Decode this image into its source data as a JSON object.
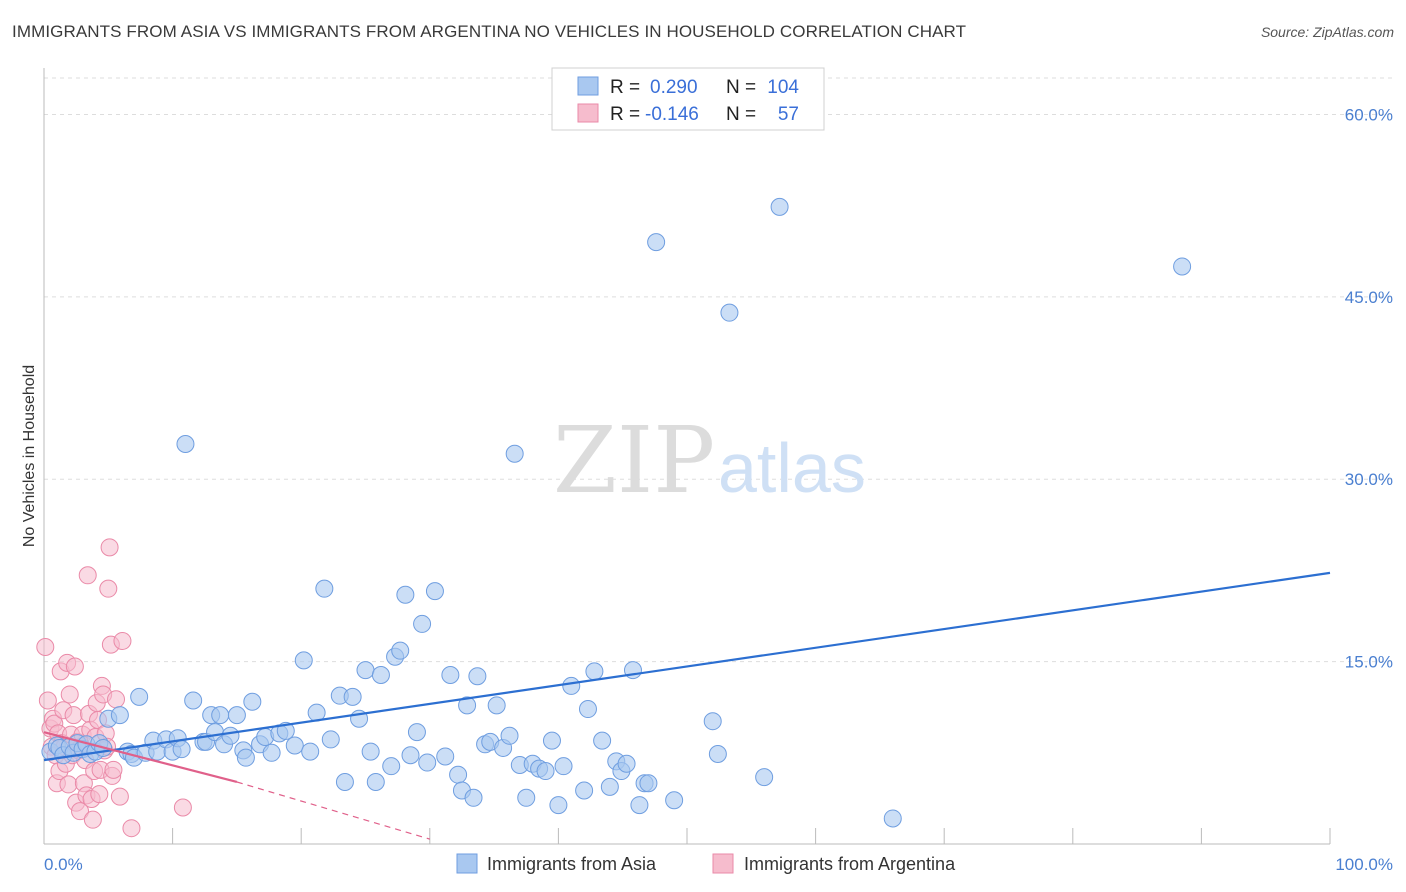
{
  "title": "IMMIGRANTS FROM ASIA VS IMMIGRANTS FROM ARGENTINA NO VEHICLES IN HOUSEHOLD CORRELATION CHART",
  "source": "Source: ZipAtlas.com",
  "watermark": {
    "zip": "ZIP",
    "atlas": "atlas"
  },
  "colors": {
    "asia_fill": "#a9c8f0",
    "asia_stroke": "#6f9ee0",
    "asia_line": "#2c6fd1",
    "arg_fill": "#f6bccd",
    "arg_stroke": "#ea8aa8",
    "arg_line": "#e0608a",
    "grid": "#dddddd",
    "tick_text": "#4a7fd0"
  },
  "legend": {
    "rows": [
      {
        "r_label": "R =",
        "r_value": "0.290",
        "n_label": "N =",
        "n_value": "104"
      },
      {
        "r_label": "R =",
        "r_value": "-0.146",
        "n_label": "N =",
        "n_value": "57"
      }
    ]
  },
  "chart_data": {
    "type": "scatter",
    "title": "IMMIGRANTS FROM ASIA VS IMMIGRANTS FROM ARGENTINA NO VEHICLES IN HOUSEHOLD CORRELATION CHART",
    "xlabel": "",
    "ylabel": "No Vehicles in Household",
    "xlim": [
      0,
      100
    ],
    "ylim": [
      0,
      63
    ],
    "x_tick_labels": [
      "0.0%",
      "100.0%"
    ],
    "y_ticks": [
      15,
      30,
      45,
      60
    ],
    "y_tick_labels": [
      "15.0%",
      "30.0%",
      "45.0%",
      "60.0%"
    ],
    "grid": true,
    "legend_position": "top-center",
    "series": [
      {
        "name": "Immigrants from Asia",
        "r": 0.29,
        "n": 104,
        "trend": {
          "x": [
            0,
            100
          ],
          "y": [
            6.9,
            22.3
          ],
          "style": "solid"
        },
        "points": [
          [
            0.5,
            7.6
          ],
          [
            1.0,
            8.1
          ],
          [
            1.2,
            7.9
          ],
          [
            1.5,
            7.3
          ],
          [
            2.0,
            8.0
          ],
          [
            2.3,
            7.5
          ],
          [
            2.6,
            8.3
          ],
          [
            3.0,
            7.8
          ],
          [
            3.3,
            8.2
          ],
          [
            3.6,
            7.4
          ],
          [
            4.0,
            7.6
          ],
          [
            4.3,
            8.3
          ],
          [
            4.6,
            7.9
          ],
          [
            5.0,
            10.3
          ],
          [
            5.9,
            10.6
          ],
          [
            6.5,
            7.6
          ],
          [
            6.8,
            7.4
          ],
          [
            7.0,
            7.1
          ],
          [
            7.4,
            12.1
          ],
          [
            7.9,
            7.5
          ],
          [
            8.5,
            8.5
          ],
          [
            8.8,
            7.6
          ],
          [
            9.5,
            8.6
          ],
          [
            10.0,
            7.6
          ],
          [
            10.4,
            8.7
          ],
          [
            10.7,
            7.8
          ],
          [
            11.0,
            32.9
          ],
          [
            11.6,
            11.8
          ],
          [
            12.4,
            8.4
          ],
          [
            12.6,
            8.4
          ],
          [
            13.0,
            10.6
          ],
          [
            13.3,
            9.2
          ],
          [
            13.7,
            10.6
          ],
          [
            14.0,
            8.2
          ],
          [
            14.5,
            8.9
          ],
          [
            15.0,
            10.6
          ],
          [
            15.5,
            7.7
          ],
          [
            15.7,
            7.1
          ],
          [
            16.2,
            11.7
          ],
          [
            16.8,
            8.2
          ],
          [
            17.2,
            8.8
          ],
          [
            17.7,
            7.5
          ],
          [
            18.3,
            9.1
          ],
          [
            18.8,
            9.3
          ],
          [
            19.5,
            8.1
          ],
          [
            20.2,
            15.1
          ],
          [
            20.7,
            7.6
          ],
          [
            21.2,
            10.8
          ],
          [
            21.8,
            21.0
          ],
          [
            22.3,
            8.6
          ],
          [
            23.0,
            12.2
          ],
          [
            23.4,
            5.1
          ],
          [
            24.0,
            12.1
          ],
          [
            24.5,
            10.3
          ],
          [
            25.0,
            14.3
          ],
          [
            25.4,
            7.6
          ],
          [
            25.8,
            5.1
          ],
          [
            26.2,
            13.9
          ],
          [
            27.0,
            6.4
          ],
          [
            27.3,
            15.4
          ],
          [
            27.7,
            15.9
          ],
          [
            28.1,
            20.5
          ],
          [
            28.5,
            7.3
          ],
          [
            29.0,
            9.2
          ],
          [
            29.4,
            18.1
          ],
          [
            29.8,
            6.7
          ],
          [
            30.4,
            20.8
          ],
          [
            31.2,
            7.2
          ],
          [
            31.6,
            13.9
          ],
          [
            32.2,
            5.7
          ],
          [
            32.5,
            4.4
          ],
          [
            32.9,
            11.4
          ],
          [
            33.4,
            3.8
          ],
          [
            33.7,
            13.8
          ],
          [
            34.3,
            8.2
          ],
          [
            34.7,
            8.4
          ],
          [
            35.2,
            11.4
          ],
          [
            35.7,
            7.9
          ],
          [
            36.2,
            8.9
          ],
          [
            36.6,
            32.1
          ],
          [
            37.0,
            6.5
          ],
          [
            37.5,
            3.8
          ],
          [
            38.0,
            6.6
          ],
          [
            38.5,
            6.2
          ],
          [
            39.0,
            6.0
          ],
          [
            39.5,
            8.5
          ],
          [
            40.0,
            3.2
          ],
          [
            40.4,
            6.4
          ],
          [
            41.0,
            13.0
          ],
          [
            42.0,
            4.4
          ],
          [
            42.3,
            11.1
          ],
          [
            42.8,
            14.2
          ],
          [
            43.4,
            8.5
          ],
          [
            44.0,
            4.7
          ],
          [
            44.5,
            6.8
          ],
          [
            44.9,
            6.0
          ],
          [
            45.3,
            6.6
          ],
          [
            45.8,
            14.3
          ],
          [
            46.3,
            3.2
          ],
          [
            46.7,
            5.0
          ],
          [
            47.0,
            5.0
          ],
          [
            47.6,
            49.5
          ],
          [
            49.0,
            3.6
          ],
          [
            52.0,
            10.1
          ],
          [
            52.4,
            7.4
          ],
          [
            53.3,
            43.7
          ],
          [
            56.0,
            5.5
          ],
          [
            57.2,
            52.4
          ],
          [
            66.0,
            2.1
          ],
          [
            88.5,
            47.5
          ]
        ]
      },
      {
        "name": "Immigrants from Argentina",
        "r": -0.146,
        "n": 57,
        "trend": {
          "x": [
            0,
            15
          ],
          "y": [
            9.2,
            5.1
          ],
          "style": "solid",
          "extended_dashed_to": [
            30,
            0.4
          ]
        },
        "points": [
          [
            0.1,
            16.2
          ],
          [
            0.3,
            11.8
          ],
          [
            0.5,
            9.5
          ],
          [
            0.6,
            8.0
          ],
          [
            0.7,
            10.3
          ],
          [
            0.8,
            9.9
          ],
          [
            0.9,
            7.3
          ],
          [
            1.0,
            5.0
          ],
          [
            1.1,
            9.1
          ],
          [
            1.2,
            6.0
          ],
          [
            1.3,
            14.2
          ],
          [
            1.4,
            8.3
          ],
          [
            1.5,
            11.0
          ],
          [
            1.6,
            8.0
          ],
          [
            1.7,
            6.6
          ],
          [
            1.8,
            14.9
          ],
          [
            1.9,
            4.9
          ],
          [
            2.0,
            12.3
          ],
          [
            2.1,
            9.0
          ],
          [
            2.2,
            7.3
          ],
          [
            2.3,
            10.6
          ],
          [
            2.4,
            14.6
          ],
          [
            2.5,
            3.4
          ],
          [
            2.6,
            8.4
          ],
          [
            2.7,
            7.7
          ],
          [
            2.8,
            2.7
          ],
          [
            2.9,
            8.0
          ],
          [
            3.0,
            9.0
          ],
          [
            3.1,
            5.0
          ],
          [
            3.2,
            6.9
          ],
          [
            3.3,
            4.0
          ],
          [
            3.4,
            22.1
          ],
          [
            3.5,
            10.7
          ],
          [
            3.6,
            9.4
          ],
          [
            3.7,
            3.7
          ],
          [
            3.8,
            2.0
          ],
          [
            3.9,
            6.0
          ],
          [
            4.0,
            8.8
          ],
          [
            4.1,
            11.6
          ],
          [
            4.2,
            10.2
          ],
          [
            4.3,
            4.1
          ],
          [
            4.4,
            6.1
          ],
          [
            4.5,
            13.0
          ],
          [
            4.6,
            12.3
          ],
          [
            4.7,
            7.7
          ],
          [
            4.8,
            9.1
          ],
          [
            4.9,
            8.0
          ],
          [
            5.0,
            21.0
          ],
          [
            5.1,
            24.4
          ],
          [
            5.2,
            16.4
          ],
          [
            5.3,
            5.6
          ],
          [
            5.4,
            6.1
          ],
          [
            5.6,
            11.9
          ],
          [
            5.9,
            3.9
          ],
          [
            6.1,
            16.7
          ],
          [
            6.8,
            1.3
          ],
          [
            10.8,
            3.0
          ]
        ]
      }
    ]
  },
  "bottom_legend": [
    {
      "label": "Immigrants from Asia"
    },
    {
      "label": "Immigrants from Argentina"
    }
  ]
}
